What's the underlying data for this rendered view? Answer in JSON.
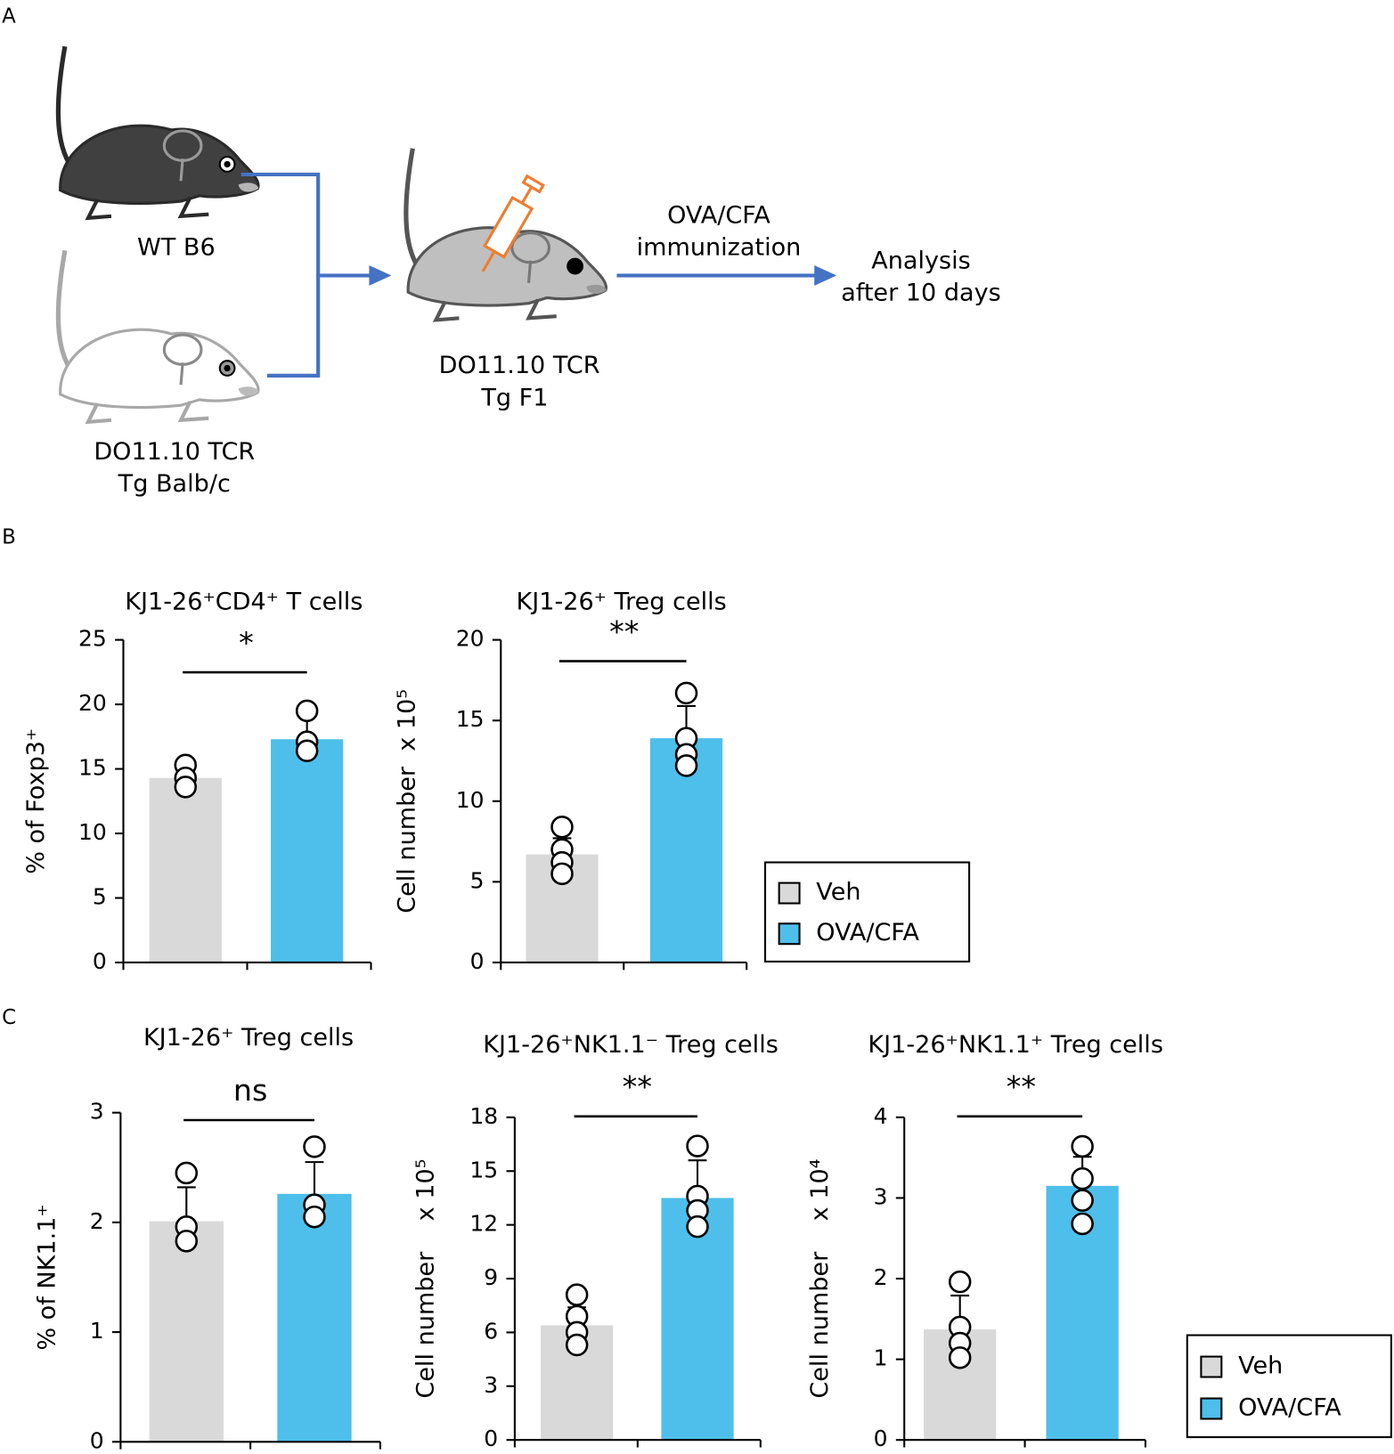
{
  "panels": [
    "A",
    "B",
    "C"
  ],
  "diagram": {
    "wt_label": "WT B6",
    "balbc_label": [
      "DO11.10 TCR",
      "Tg Balb/c"
    ],
    "f1_label": [
      "DO11.10 TCR",
      "Tg F1"
    ],
    "step_label": [
      "OVA/CFA",
      "immunization"
    ],
    "result_label": [
      "Analysis",
      "after 10 days"
    ]
  },
  "chart_data": [
    {
      "type": "bar",
      "title": "KJ1-26⁺CD4⁺ T cells",
      "ylabel": "% of Foxp3⁺",
      "categories": [
        null,
        null
      ],
      "values": [
        14.3,
        17.3
      ],
      "errors": [
        0.8,
        1.8
      ],
      "points": [
        [
          15.3,
          14.3,
          13.6
        ],
        [
          19.5,
          17.1,
          16.4
        ]
      ],
      "colors": [
        "#d9d9d9",
        "#4dbfea"
      ],
      "ylim": [
        0,
        25
      ],
      "yticks": [
        0,
        5,
        10,
        15,
        20,
        25
      ],
      "significance": "*"
    },
    {
      "type": "bar",
      "title": "KJ1-26⁺ Treg cells",
      "ylabel": "Cell number  x 10⁵",
      "categories": [
        null,
        null
      ],
      "values": [
        6.7,
        13.9
      ],
      "errors": [
        1.0,
        2.0
      ],
      "points": [
        [
          8.4,
          7.0,
          6.2,
          5.5
        ],
        [
          16.7,
          13.9,
          12.9,
          12.2
        ]
      ],
      "colors": [
        "#d9d9d9",
        "#4dbfea"
      ],
      "ylim": [
        0,
        20
      ],
      "yticks": [
        0,
        5,
        10,
        15,
        20
      ],
      "significance": "**",
      "legend": [
        "Veh",
        "OVA/CFA"
      ]
    },
    {
      "type": "bar",
      "title": "KJ1-26⁺ Treg cells",
      "ylabel": "% of NK1.1⁺",
      "categories": [
        null,
        null
      ],
      "values": [
        2.01,
        2.26
      ],
      "errors": [
        0.31,
        0.29
      ],
      "points": [
        [
          2.45,
          1.96,
          1.83
        ],
        [
          2.69,
          2.16,
          2.05
        ]
      ],
      "colors": [
        "#d9d9d9",
        "#4dbfea"
      ],
      "ylim": [
        0,
        3
      ],
      "yticks": [
        0,
        1,
        2,
        3
      ],
      "significance": "ns"
    },
    {
      "type": "bar",
      "title": "KJ1-26⁺NK1.1⁻ Treg cells",
      "ylabel": "Cell number    x 10⁵",
      "categories": [
        null,
        null
      ],
      "values": [
        6.4,
        13.5
      ],
      "errors": [
        1.0,
        2.1
      ],
      "points": [
        [
          8.1,
          6.9,
          6.0,
          5.3
        ],
        [
          16.4,
          13.6,
          12.8,
          11.9
        ]
      ],
      "colors": [
        "#d9d9d9",
        "#4dbfea"
      ],
      "ylim": [
        0,
        18
      ],
      "yticks": [
        0,
        3,
        6,
        9,
        12,
        15,
        18
      ],
      "significance": "**"
    },
    {
      "type": "bar",
      "title": "KJ1-26⁺NK1.1⁺ Treg cells",
      "ylabel": "Cell number    x 10⁴",
      "categories": [
        null,
        null
      ],
      "values": [
        1.37,
        3.15
      ],
      "errors": [
        0.42,
        0.36
      ],
      "points": [
        [
          1.96,
          1.4,
          1.2,
          1.02
        ],
        [
          3.64,
          3.24,
          2.97,
          2.68
        ]
      ],
      "colors": [
        "#d9d9d9",
        "#4dbfea"
      ],
      "ylim": [
        0,
        4
      ],
      "yticks": [
        0,
        1,
        2,
        3,
        4
      ],
      "significance": "**",
      "legend": [
        "Veh",
        "OVA/CFA"
      ]
    }
  ]
}
